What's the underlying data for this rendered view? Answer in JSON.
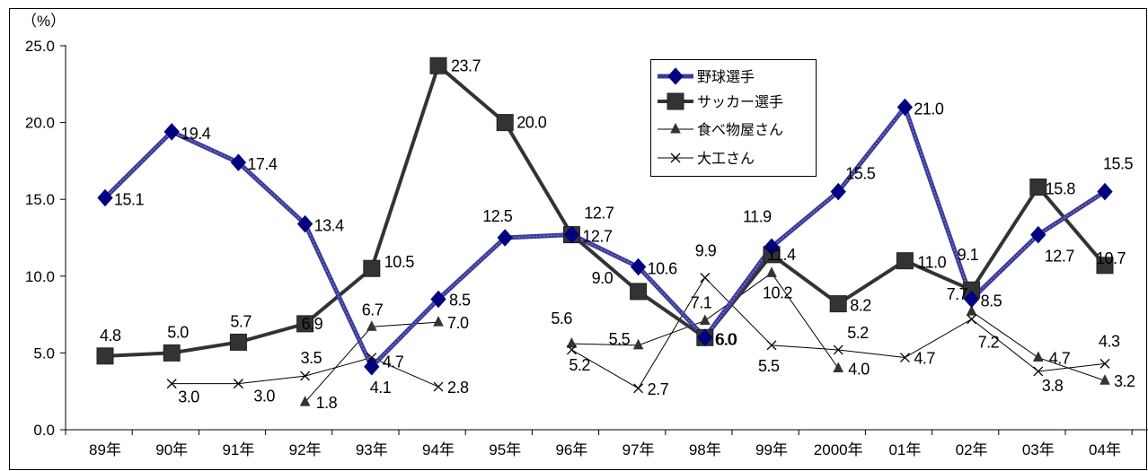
{
  "chart_data": {
    "type": "line",
    "unit_label": "（%）",
    "categories": [
      "89年",
      "90年",
      "91年",
      "92年",
      "93年",
      "94年",
      "95年",
      "96年",
      "97年",
      "98年",
      "99年",
      "2000年",
      "01年",
      "02年",
      "03年",
      "04年"
    ],
    "ylim": [
      0,
      25
    ],
    "yticks": [
      0,
      5,
      10,
      15,
      20,
      25
    ],
    "ytick_labels": [
      "0.0",
      "5.0",
      "10.0",
      "15.0",
      "20.0",
      "25.0"
    ],
    "grid": false,
    "legend_position": "top-right",
    "series": [
      {
        "name": "野球選手",
        "color": "#3a3a8f",
        "marker": "diamond",
        "values": [
          15.1,
          19.4,
          17.4,
          13.4,
          4.1,
          8.5,
          12.5,
          12.7,
          10.6,
          6.0,
          11.9,
          15.5,
          21.0,
          8.5,
          12.7,
          15.5
        ]
      },
      {
        "name": "サッカー選手",
        "color": "#3a3a3a",
        "marker": "square",
        "values": [
          4.8,
          5.0,
          5.7,
          6.9,
          10.5,
          23.7,
          20.0,
          12.7,
          9.0,
          6.0,
          11.4,
          8.2,
          11.0,
          9.1,
          15.8,
          10.7
        ]
      },
      {
        "name": "食べ物屋さん",
        "color": "#000000",
        "marker": "triangle",
        "values": [
          null,
          null,
          null,
          1.8,
          6.7,
          7.0,
          null,
          5.6,
          5.5,
          7.1,
          10.2,
          4.0,
          null,
          7.7,
          4.7,
          3.2
        ]
      },
      {
        "name": "大工さん",
        "color": "#000000",
        "marker": "x",
        "values": [
          null,
          3.0,
          3.0,
          3.5,
          4.7,
          2.8,
          null,
          5.2,
          2.7,
          9.9,
          5.5,
          5.2,
          4.7,
          7.2,
          3.8,
          4.3
        ]
      }
    ]
  }
}
